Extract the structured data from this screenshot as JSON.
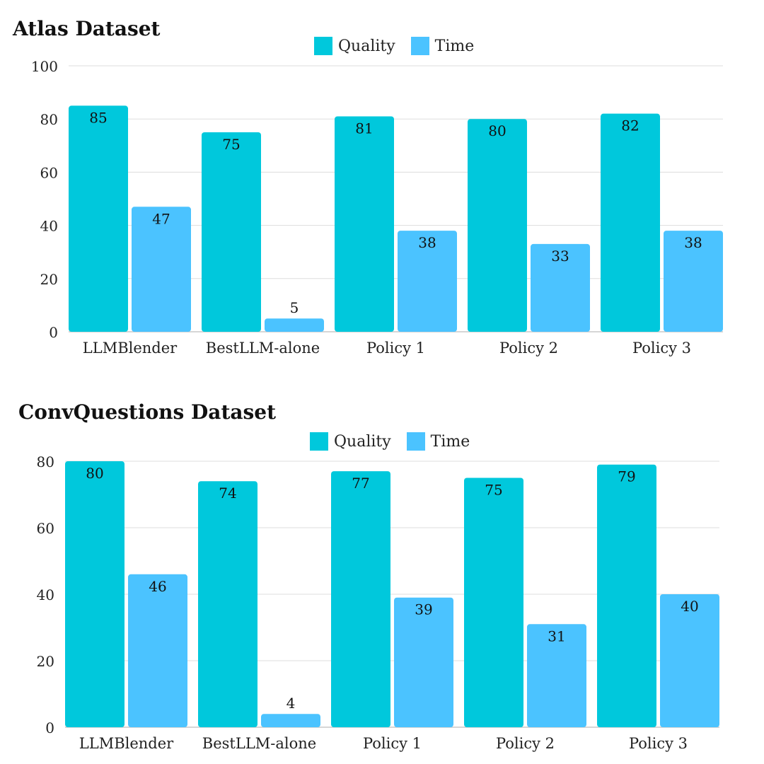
{
  "colors": {
    "quality": "#00C8DC",
    "time": "#4BC3FF",
    "grid": "#DDDDDD",
    "axis": "#C9C9C9"
  },
  "chart_data": [
    {
      "type": "bar",
      "title": "Atlas Dataset",
      "categories": [
        "LLMBlender",
        "BestLLM-alone",
        "Policy 1",
        "Policy 2",
        "Policy 3"
      ],
      "series": [
        {
          "name": "Quality",
          "values": [
            85,
            75,
            81,
            80,
            82
          ]
        },
        {
          "name": "Time",
          "values": [
            47,
            5,
            38,
            33,
            38
          ]
        }
      ],
      "ylim": [
        0,
        100
      ],
      "yticks": [
        "0",
        "20",
        "40",
        "60",
        "80",
        "100"
      ],
      "grid": true,
      "legend_position": "top-center"
    },
    {
      "type": "bar",
      "title": "ConvQuestions Dataset",
      "categories": [
        "LLMBlender",
        "BestLLM-alone",
        "Policy 1",
        "Policy 2",
        "Policy 3"
      ],
      "series": [
        {
          "name": "Quality",
          "values": [
            80,
            74,
            77,
            75,
            79
          ]
        },
        {
          "name": "Time",
          "values": [
            46,
            4,
            39,
            31,
            40
          ]
        }
      ],
      "ylim": [
        0,
        80
      ],
      "yticks": [
        "0",
        "20",
        "40",
        "60",
        "80"
      ],
      "grid": true,
      "legend_position": "top-center"
    }
  ]
}
